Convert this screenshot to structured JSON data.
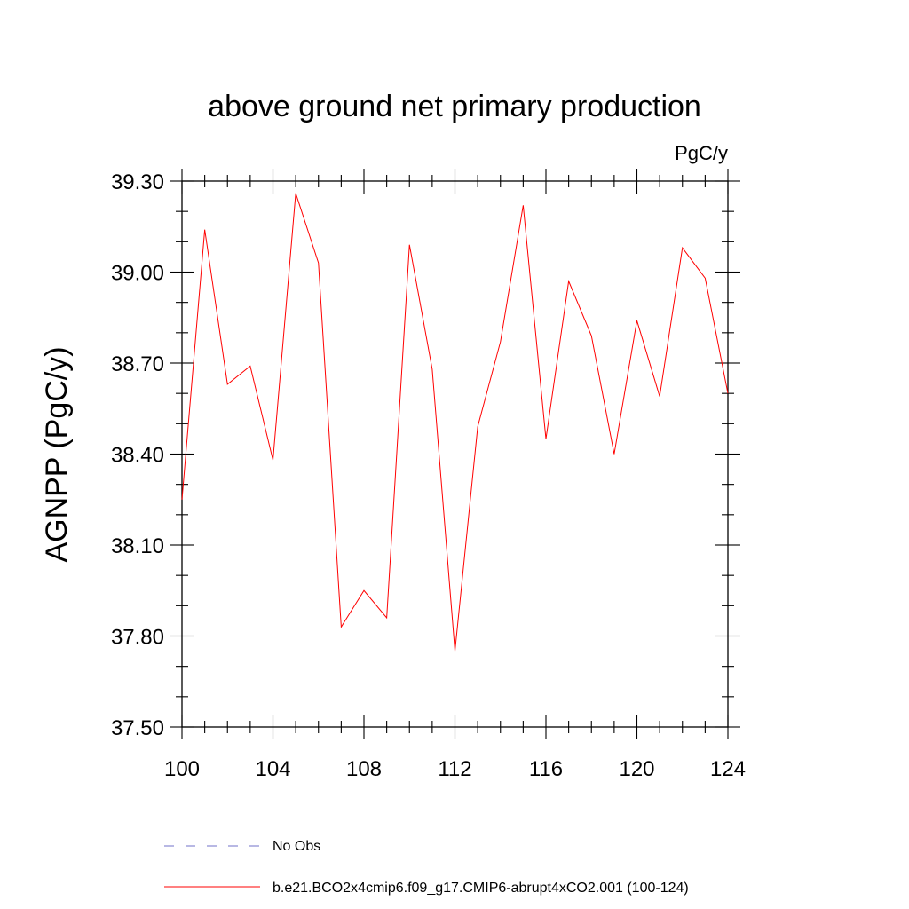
{
  "chart_data": {
    "type": "line",
    "title": "above ground net primary production",
    "units_label": "PgC/y",
    "ylabel": "AGNPP  (PgC/y)",
    "xlabel": "",
    "xlim": [
      100,
      124
    ],
    "ylim": [
      37.5,
      39.3
    ],
    "xticks": [
      100,
      104,
      108,
      112,
      116,
      120,
      124
    ],
    "xtick_labels": [
      "100",
      "104",
      "108",
      "112",
      "116",
      "120",
      "124"
    ],
    "yticks": [
      37.5,
      37.8,
      38.1,
      38.4,
      38.7,
      39.0,
      39.3
    ],
    "ytick_labels": [
      "37.50",
      "37.80",
      "38.10",
      "38.40",
      "38.70",
      "39.00",
      "39.30"
    ],
    "grid": false,
    "series": [
      {
        "name": "b.e21.BCO2x4cmip6.f09_g17.CMIP6-abrupt4xCO2.001 (100-124)",
        "color": "#ff0000",
        "x": [
          100,
          101,
          102,
          103,
          104,
          105,
          106,
          107,
          108,
          109,
          110,
          111,
          112,
          113,
          114,
          115,
          116,
          117,
          118,
          119,
          120,
          121,
          122,
          123,
          124
        ],
        "values": [
          38.25,
          39.14,
          38.63,
          38.69,
          38.38,
          39.26,
          39.03,
          37.83,
          37.95,
          37.86,
          39.09,
          38.68,
          37.75,
          38.49,
          38.77,
          39.22,
          38.45,
          38.97,
          38.79,
          38.4,
          38.84,
          38.59,
          39.08,
          38.98,
          38.6
        ]
      }
    ],
    "legend": [
      {
        "label": "No Obs",
        "style": "dashed",
        "color": "#7070c8"
      },
      {
        "label": "b.e21.BCO2x4cmip6.f09_g17.CMIP6-abrupt4xCO2.001 (100-124)",
        "style": "solid",
        "color": "#ff0000"
      }
    ]
  }
}
